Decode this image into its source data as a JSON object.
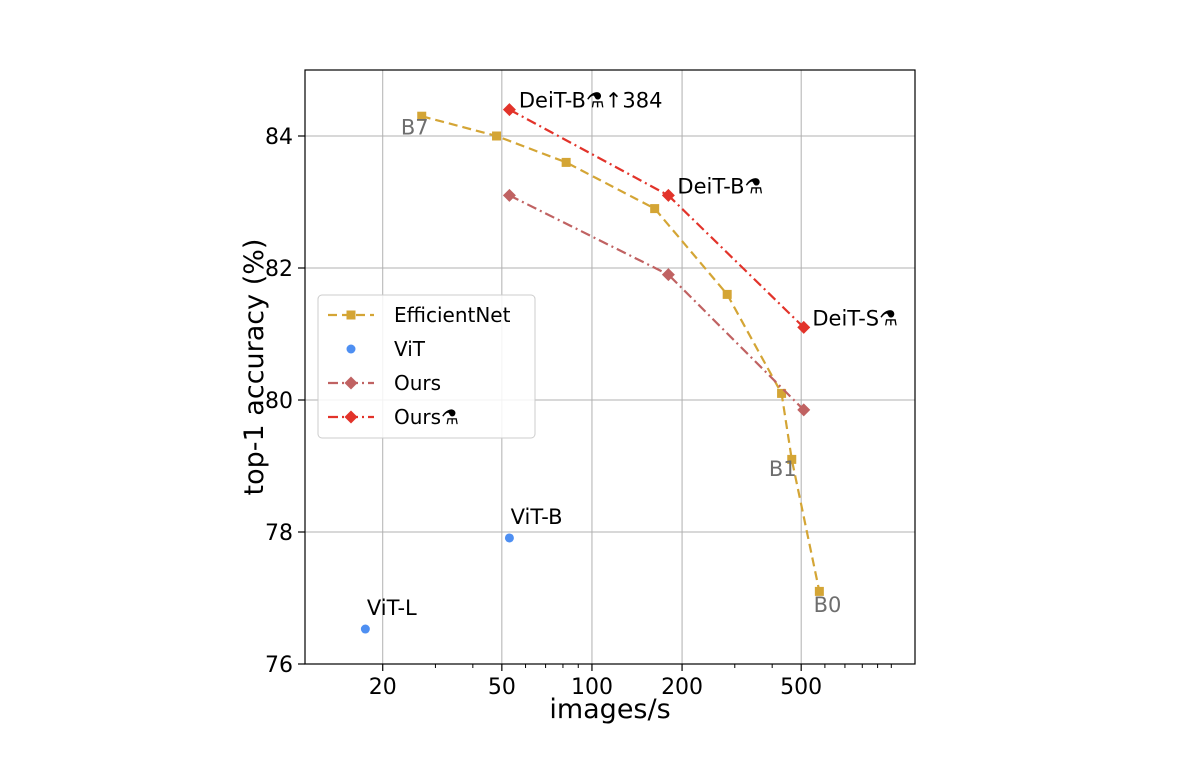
{
  "chart_data": {
    "type": "line",
    "xscale": "log",
    "xlabel": "images/s",
    "ylabel": "top-1 accuracy (%)",
    "xlim": [
      11,
      1200
    ],
    "ylim": [
      76,
      85
    ],
    "xticks": [
      20,
      50,
      100,
      200,
      500
    ],
    "xtick_labels": [
      "20",
      "50",
      "100",
      "200",
      "500"
    ],
    "yticks": [
      76,
      78,
      80,
      82,
      84
    ],
    "ytick_labels": [
      "76",
      "78",
      "80",
      "82",
      "84"
    ],
    "grid": true,
    "legend_position": "center-left",
    "series": [
      {
        "name": "EfficientNet",
        "color": "#d4a535",
        "marker": "square",
        "linestyle": "dashed",
        "points": [
          {
            "x": 27,
            "y": 84.3
          },
          {
            "x": 48,
            "y": 84.0
          },
          {
            "x": 82,
            "y": 83.6
          },
          {
            "x": 162,
            "y": 82.9
          },
          {
            "x": 283,
            "y": 81.6
          },
          {
            "x": 430,
            "y": 80.1
          },
          {
            "x": 465,
            "y": 79.1
          },
          {
            "x": 575,
            "y": 77.1
          }
        ]
      },
      {
        "name": "ViT",
        "color": "#4e8ff2",
        "marker": "circle",
        "linestyle": "none",
        "points": [
          {
            "x": 17.5,
            "y": 76.53
          },
          {
            "x": 53,
            "y": 77.91
          }
        ]
      },
      {
        "name": "Ours",
        "color": "#c06262",
        "marker": "diamond",
        "linestyle": "dashdot",
        "points": [
          {
            "x": 53,
            "y": 83.1
          },
          {
            "x": 180,
            "y": 81.9
          },
          {
            "x": 510,
            "y": 79.85
          }
        ]
      },
      {
        "name": "Ours⚗",
        "color": "#e2332a",
        "marker": "diamond",
        "linestyle": "dashdot",
        "points": [
          {
            "x": 53,
            "y": 84.4
          },
          {
            "x": 180,
            "y": 83.1
          },
          {
            "x": 510,
            "y": 81.1
          }
        ]
      }
    ],
    "annotations": [
      {
        "text": "B7",
        "x": 23,
        "y": 84.02,
        "style": "gray"
      },
      {
        "text": "B1",
        "x": 390,
        "y": 78.85,
        "style": "gray"
      },
      {
        "text": "B0",
        "x": 550,
        "y": 76.79,
        "style": "gray"
      },
      {
        "text": "ViT-L",
        "x": 17.7,
        "y": 76.74,
        "style": "black"
      },
      {
        "text": "ViT-B",
        "x": 53.5,
        "y": 78.12,
        "style": "black"
      },
      {
        "text": "DeiT-B⚗↑384",
        "x": 57,
        "y": 84.43,
        "style": "black"
      },
      {
        "text": "DeiT-B⚗",
        "x": 193,
        "y": 83.13,
        "style": "black"
      },
      {
        "text": "DeiT-S⚗",
        "x": 545,
        "y": 81.13,
        "style": "black"
      }
    ]
  }
}
